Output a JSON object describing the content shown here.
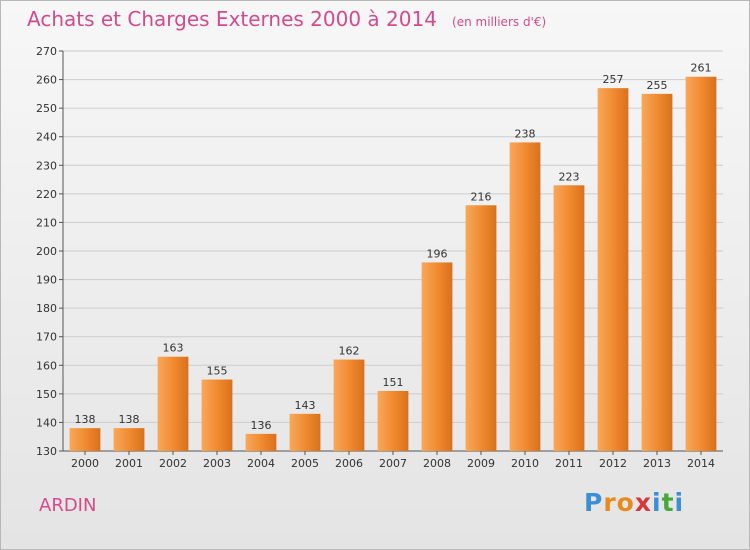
{
  "chart_data": {
    "type": "bar",
    "title": "Achats et Charges Externes 2000 à 2014",
    "subtitle": "(en milliers d'€)",
    "categories": [
      "2000",
      "2001",
      "2002",
      "2003",
      "2004",
      "2005",
      "2006",
      "2007",
      "2008",
      "2009",
      "2010",
      "2011",
      "2012",
      "2013",
      "2014"
    ],
    "values": [
      138,
      138,
      163,
      155,
      136,
      143,
      162,
      151,
      196,
      216,
      238,
      223,
      257,
      255,
      261
    ],
    "ylim": [
      130,
      270
    ],
    "yticks": [
      130,
      140,
      150,
      160,
      170,
      180,
      190,
      200,
      210,
      220,
      230,
      240,
      250,
      260,
      270
    ],
    "grid": true,
    "bar_color": "#f0882e",
    "bar_color_light": "#f8a85a",
    "bar_color_dark": "#d9701c"
  },
  "commune": "ARDIN",
  "brand": {
    "letters": [
      "P",
      "r",
      "o",
      "x",
      "i",
      "t",
      "i"
    ],
    "colors": [
      "#3a8fd6",
      "#e88a1c",
      "#e88a1c",
      "#d6373c",
      "#3a8fd6",
      "#49a83c",
      "#3a8fd6"
    ]
  },
  "colors": {
    "title": "#d64a8b",
    "axis_text": "#333333",
    "grid": "#cccccc"
  }
}
